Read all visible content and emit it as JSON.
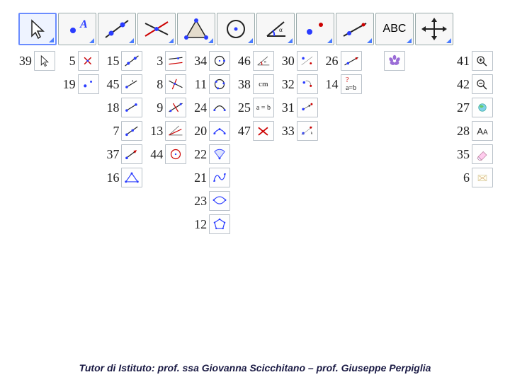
{
  "toolbar": [
    {
      "name": "arrow-tool",
      "type": "cursor",
      "active": true
    },
    {
      "name": "point-tool",
      "type": "pointA",
      "active": false
    },
    {
      "name": "line-tool",
      "type": "line2",
      "active": false
    },
    {
      "name": "perp-tool",
      "type": "crosslines",
      "active": false
    },
    {
      "name": "polygon-tool",
      "type": "triangleO",
      "active": false
    },
    {
      "name": "circle-tool",
      "type": "circle",
      "active": false
    },
    {
      "name": "angle-tool",
      "type": "angle",
      "active": false
    },
    {
      "name": "reflect-tool",
      "type": "twodots",
      "active": false
    },
    {
      "name": "slider-tool",
      "type": "slope",
      "active": false
    },
    {
      "name": "text-tool",
      "type": "abc",
      "active": false
    },
    {
      "name": "move-tool",
      "type": "moveAll",
      "active": false
    }
  ],
  "columns": [
    [
      {
        "n": "39",
        "t": "cursor"
      }
    ],
    [
      {
        "n": "5",
        "t": "pointX"
      },
      {
        "n": "19",
        "t": "twodotsS"
      }
    ],
    [
      {
        "n": "15",
        "t": "line2"
      },
      {
        "n": "45",
        "t": "segment"
      },
      {
        "n": "18",
        "t": "segment2"
      },
      {
        "n": "7",
        "t": "ray"
      },
      {
        "n": "37",
        "t": "vector"
      },
      {
        "n": "16",
        "t": "triB"
      }
    ],
    [
      {
        "n": "3",
        "t": "parallel"
      },
      {
        "n": "8",
        "t": "perpRed"
      },
      {
        "n": "9",
        "t": "midline"
      },
      {
        "n": "13",
        "t": "bisector"
      },
      {
        "n": "44",
        "t": "circleR"
      }
    ],
    [
      {
        "n": "34",
        "t": "circDot"
      },
      {
        "n": "11",
        "t": "circ3"
      },
      {
        "n": "24",
        "t": "arc"
      },
      {
        "n": "20",
        "t": "arcB"
      },
      {
        "n": "22",
        "t": "sector"
      },
      {
        "n": "21",
        "t": "conic"
      },
      {
        "n": "23",
        "t": "conic2"
      },
      {
        "n": "12",
        "t": "polyC"
      }
    ],
    [
      {
        "n": "46",
        "t": "angleS"
      },
      {
        "n": "38",
        "t": "cm"
      },
      {
        "n": "25",
        "t": "ab"
      },
      {
        "n": "47",
        "t": "redX"
      }
    ],
    [
      {
        "n": "30",
        "t": "mirrorP"
      },
      {
        "n": "32",
        "t": "rotateP"
      },
      {
        "n": "31",
        "t": "translate"
      },
      {
        "n": "33",
        "t": "dilate"
      }
    ],
    [
      {
        "n": "26",
        "t": "slope"
      },
      {
        "n": "14",
        "t": "aeqb"
      }
    ],
    [
      {
        "n": "",
        "t": "flower"
      }
    ],
    [
      {
        "n": "41",
        "t": "zoomin"
      },
      {
        "n": "42",
        "t": "zoomout"
      },
      {
        "n": "27",
        "t": "globe"
      },
      {
        "n": "28",
        "t": "aa"
      },
      {
        "n": "35",
        "t": "eraser"
      },
      {
        "n": "6",
        "t": "del"
      }
    ]
  ],
  "footer": "Tutor di Istituto: prof. ssa Giovanna Scicchitano – prof. Giuseppe Perpiglia"
}
